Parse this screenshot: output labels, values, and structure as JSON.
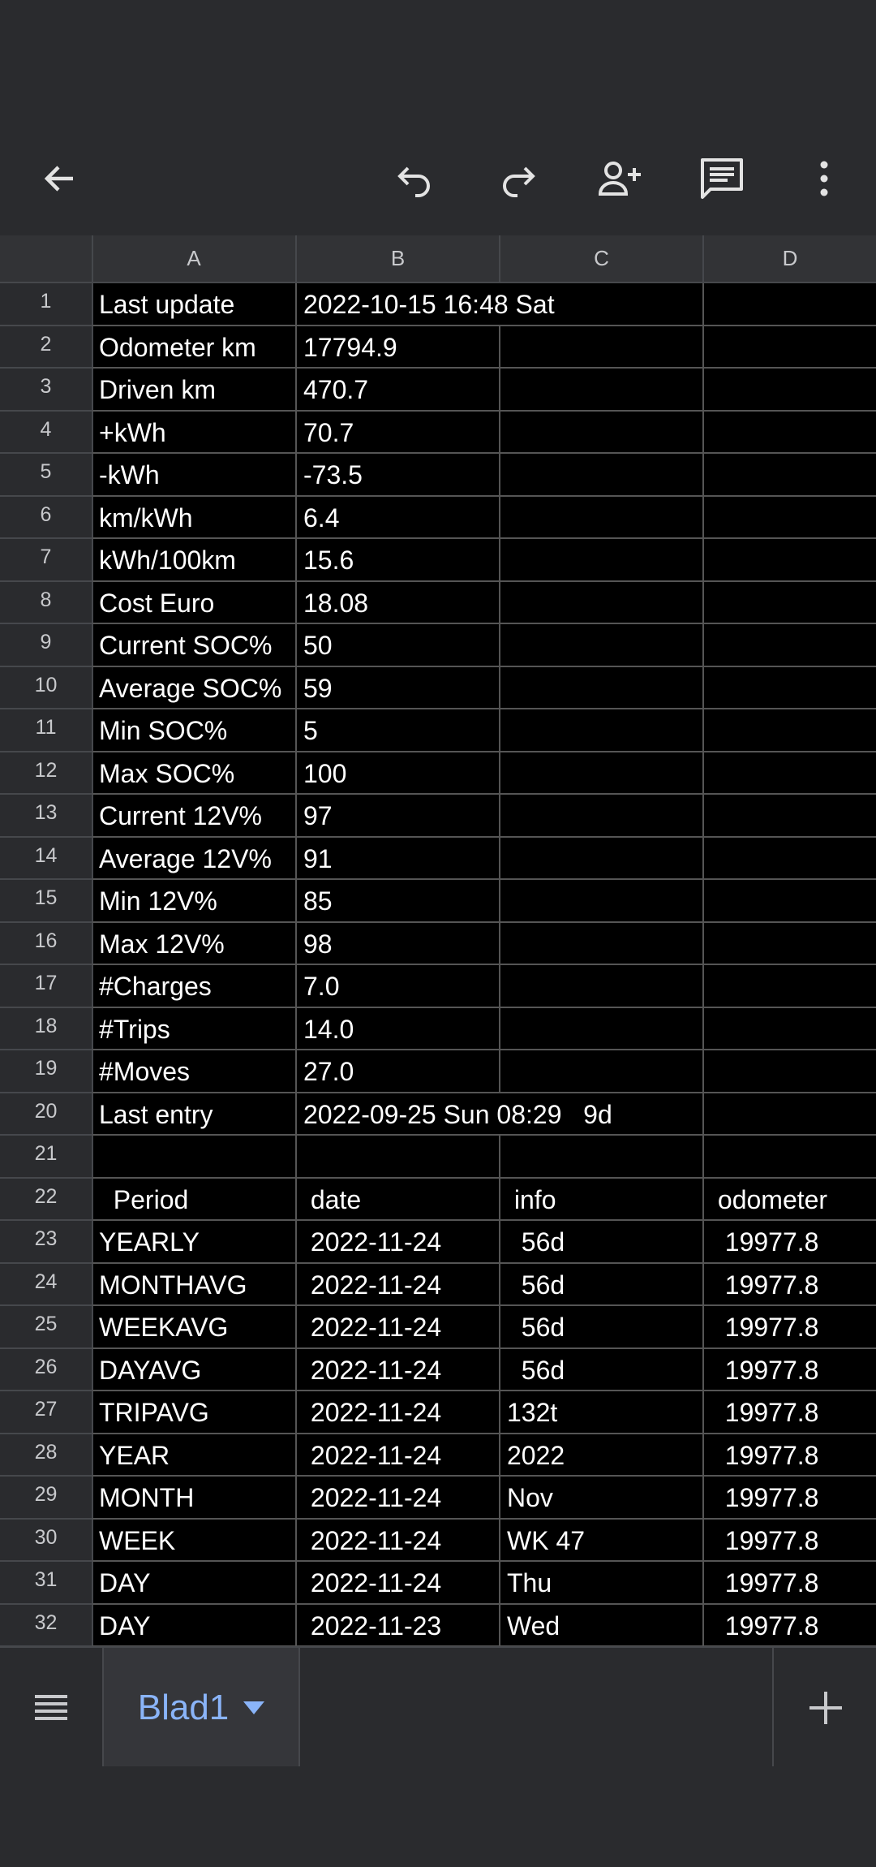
{
  "toolbar": {
    "icons": [
      "back-arrow-icon",
      "undo-icon",
      "redo-icon",
      "share-icon",
      "comment-icon",
      "more-vert-icon"
    ]
  },
  "columns": [
    "A",
    "B",
    "C",
    "D"
  ],
  "rows": [
    {
      "n": "1",
      "a": "Last update",
      "b": "2022-10-15 16:48 Sat",
      "c": "",
      "d": ""
    },
    {
      "n": "2",
      "a": "Odometer km",
      "b": "17794.9",
      "c": "",
      "d": ""
    },
    {
      "n": "3",
      "a": "Driven km",
      "b": "470.7",
      "c": "",
      "d": ""
    },
    {
      "n": "4",
      "a": "+kWh",
      "b": "70.7",
      "c": "",
      "d": ""
    },
    {
      "n": "5",
      "a": "-kWh",
      "b": "-73.5",
      "c": "",
      "d": ""
    },
    {
      "n": "6",
      "a": "km/kWh",
      "b": "6.4",
      "c": "",
      "d": ""
    },
    {
      "n": "7",
      "a": "kWh/100km",
      "b": "15.6",
      "c": "",
      "d": ""
    },
    {
      "n": "8",
      "a": "Cost Euro",
      "b": "18.08",
      "c": "",
      "d": ""
    },
    {
      "n": "9",
      "a": "Current SOC%",
      "b": "50",
      "c": "",
      "d": ""
    },
    {
      "n": "10",
      "a": "Average SOC%",
      "b": "59",
      "c": "",
      "d": ""
    },
    {
      "n": "11",
      "a": "Min SOC%",
      "b": "5",
      "c": "",
      "d": ""
    },
    {
      "n": "12",
      "a": "Max SOC%",
      "b": "100",
      "c": "",
      "d": ""
    },
    {
      "n": "13",
      "a": "Current 12V%",
      "b": "97",
      "c": "",
      "d": ""
    },
    {
      "n": "14",
      "a": "Average 12V%",
      "b": "91",
      "c": "",
      "d": ""
    },
    {
      "n": "15",
      "a": "Min 12V%",
      "b": "85",
      "c": "",
      "d": ""
    },
    {
      "n": "16",
      "a": "Max 12V%",
      "b": "98",
      "c": "",
      "d": ""
    },
    {
      "n": "17",
      "a": "#Charges",
      "b": "7.0",
      "c": "",
      "d": ""
    },
    {
      "n": "18",
      "a": "#Trips",
      "b": "14.0",
      "c": "",
      "d": ""
    },
    {
      "n": "19",
      "a": "#Moves",
      "b": "27.0",
      "c": "",
      "d": ""
    },
    {
      "n": "20",
      "a": "Last entry",
      "b": "2022-09-25 Sun 08:29   9d",
      "c": "",
      "d": ""
    },
    {
      "n": "21",
      "a": "",
      "b": "",
      "c": "",
      "d": ""
    },
    {
      "n": "22",
      "a": "  Period",
      "b": " date",
      "c": " info",
      "d": " odometer"
    },
    {
      "n": "23",
      "a": "YEARLY",
      "b": " 2022-11-24",
      "c": "  56d",
      "d": "  19977.8"
    },
    {
      "n": "24",
      "a": "MONTHAVG",
      "b": " 2022-11-24",
      "c": "  56d",
      "d": "  19977.8"
    },
    {
      "n": "25",
      "a": "WEEKAVG",
      "b": " 2022-11-24",
      "c": "  56d",
      "d": "  19977.8"
    },
    {
      "n": "26",
      "a": "DAYAVG",
      "b": " 2022-11-24",
      "c": "  56d",
      "d": "  19977.8"
    },
    {
      "n": "27",
      "a": "TRIPAVG",
      "b": " 2022-11-24",
      "c": "132t",
      "d": "  19977.8"
    },
    {
      "n": "28",
      "a": "YEAR",
      "b": " 2022-11-24",
      "c": "2022",
      "d": "  19977.8"
    },
    {
      "n": "29",
      "a": "MONTH",
      "b": " 2022-11-24",
      "c": "Nov",
      "d": "  19977.8"
    },
    {
      "n": "30",
      "a": "WEEK",
      "b": " 2022-11-24",
      "c": "WK 47",
      "d": "  19977.8"
    },
    {
      "n": "31",
      "a": "DAY",
      "b": " 2022-11-24",
      "c": "Thu",
      "d": "  19977.8"
    },
    {
      "n": "32",
      "a": "DAY",
      "b": " 2022-11-23",
      "c": "Wed",
      "d": "  19977.8"
    }
  ],
  "sheet_tab": {
    "label": "Blad1"
  },
  "colors": {
    "background": "#2a2b2e",
    "cell": "#000000",
    "accent": "#8ab4f8"
  }
}
